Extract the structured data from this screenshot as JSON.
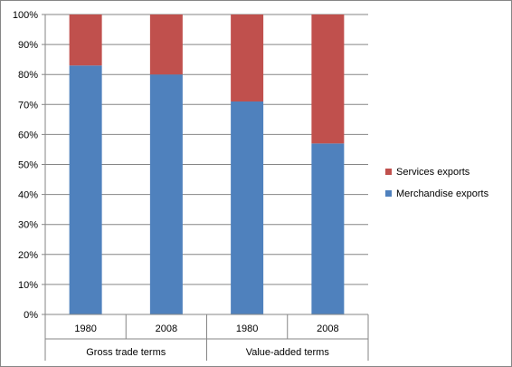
{
  "chart_data": {
    "type": "bar",
    "stacked": true,
    "categories": [
      "1980",
      "2008",
      "1980",
      "2008"
    ],
    "groups": [
      {
        "label": "Gross trade terms",
        "categories": [
          "1980",
          "2008"
        ]
      },
      {
        "label": "Value-added terms",
        "categories": [
          "1980",
          "2008"
        ]
      }
    ],
    "series": [
      {
        "name": "Merchandise exports",
        "color": "#4F81BD",
        "values": [
          83,
          80,
          71,
          57
        ]
      },
      {
        "name": "Services exports",
        "color": "#C0504D",
        "values": [
          17,
          20,
          29,
          43
        ]
      }
    ],
    "ylim": [
      0,
      100
    ],
    "yticks": [
      "0%",
      "10%",
      "20%",
      "30%",
      "40%",
      "50%",
      "60%",
      "70%",
      "80%",
      "90%",
      "100%"
    ],
    "grid": true,
    "legend": "right",
    "title": "",
    "xlabel": "",
    "ylabel": ""
  }
}
